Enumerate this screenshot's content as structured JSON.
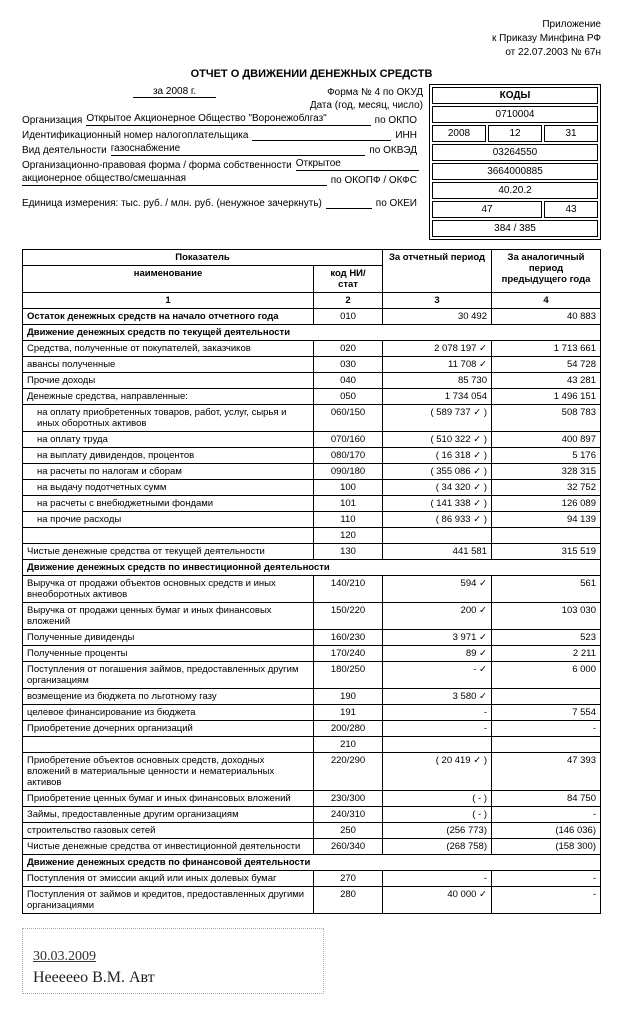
{
  "header": {
    "appendix": "Приложение",
    "order": "к Приказу Минфина РФ",
    "order_date": "от 22.07.2003 № 67н"
  },
  "title": "ОТЧЕТ О ДВИЖЕНИИ ДЕНЕЖНЫХ СРЕДСТВ",
  "period": "за 2008 г.",
  "codes": {
    "header": "КОДЫ",
    "okud_label": "Форма № 4 по ОКУД",
    "okud": "0710004",
    "date_label": "Дата (год, месяц, число)",
    "date_y": "2008",
    "date_m": "12",
    "date_d": "31",
    "okpo_label": "по ОКПО",
    "okpo": "03264550",
    "inn_label": "ИНН",
    "inn": "3664000885",
    "okved_label": "по ОКВЭД",
    "okved": "40.20.2",
    "okopf_label": "по ОКОПФ / ОКФС",
    "okopf": "47",
    "okfs": "43",
    "okei_label": "по ОКЕИ",
    "okei": "384 / 385"
  },
  "meta": {
    "org_label": "Организация",
    "org": "Открытое Акционерное Общество \"Воронежоблгаз\"",
    "inn_row": "Идентификационный номер налогоплательщика",
    "activity_label": "Вид деятельности",
    "activity": "газоснабжение",
    "form_label": "Организационно-правовая форма / форма собственности",
    "form": "Открытое",
    "form2": "акционерное общество/смешанная",
    "unit_label": "Единица измерения: тыс. руб. / млн. руб. (ненужное зачеркнуть)"
  },
  "columns": {
    "name_header": "Показатель",
    "name": "наименование",
    "code": "код НИ/\nстат",
    "period_current": "За отчетный период",
    "period_prev": "За аналогичный период предыдущего года",
    "n1": "1",
    "n2": "2",
    "n3": "3",
    "n4": "4"
  },
  "rows": [
    {
      "name": "Остаток денежных средств на начало отчетного года",
      "code": "010",
      "c": "30 492",
      "p": "40 883",
      "bold": true
    },
    {
      "name": "Движение денежных средств по текущей деятельности",
      "bold": true,
      "section": true
    },
    {
      "name": "Средства, полученные от покупателей, заказчиков",
      "code": "020",
      "c": "2 078 197 ✓",
      "p": "1 713 661"
    },
    {
      "name": "авансы полученные",
      "code": "030",
      "c": "11 708 ✓",
      "p": "54 728"
    },
    {
      "name": "Прочие доходы",
      "code": "040",
      "c": "85 730",
      "p": "43 281"
    },
    {
      "name": "Денежные средства, направленные:",
      "code": "050",
      "c": "1 734 054",
      "p": "1 496 151"
    },
    {
      "name": "на оплату приобретенных товаров, работ, услуг, сырья и иных оборотных активов",
      "code": "060/150",
      "c": "( 589 737 ✓ )",
      "p": "508 783",
      "indent": true
    },
    {
      "name": "на оплату труда",
      "code": "070/160",
      "c": "( 510 322 ✓ )",
      "p": "400 897",
      "indent": true
    },
    {
      "name": "на выплату дивидендов, процентов",
      "code": "080/170",
      "c": "( 16 318 ✓ )",
      "p": "5 176",
      "indent": true
    },
    {
      "name": "на расчеты по налогам и сборам",
      "code": "090/180",
      "c": "( 355 086 ✓ )",
      "p": "328 315",
      "indent": true
    },
    {
      "name": "на выдачу подотчетных сумм",
      "code": "100",
      "c": "( 34 320 ✓ )",
      "p": "32 752",
      "indent": true
    },
    {
      "name": "на расчеты с внебюджетными фондами",
      "code": "101",
      "c": "( 141 338 ✓ )",
      "p": "126 089",
      "indent": true
    },
    {
      "name": "на прочие расходы",
      "code": "110",
      "c": "( 86 933 ✓ )",
      "p": "94 139",
      "indent": true
    },
    {
      "name": "",
      "code": "120",
      "c": "",
      "p": ""
    },
    {
      "name": "Чистые денежные средства от текущей деятельности",
      "code": "130",
      "c": "441 581",
      "p": "315 519"
    },
    {
      "name": "Движение денежных средств по инвестиционной деятельности",
      "bold": true,
      "section": true
    },
    {
      "name": "Выручка от продажи объектов основных средств и иных внеоборотных активов",
      "code": "140/210",
      "c": "594 ✓",
      "p": "561"
    },
    {
      "name": "Выручка от продажи ценных бумаг и иных финансовых вложений",
      "code": "150/220",
      "c": "200 ✓",
      "p": "103 030"
    },
    {
      "name": "Полученные дивиденды",
      "code": "160/230",
      "c": "3 971 ✓",
      "p": "523"
    },
    {
      "name": "Полученные проценты",
      "code": "170/240",
      "c": "89 ✓",
      "p": "2 211"
    },
    {
      "name": "Поступления от погашения займов, предоставленных другим организациям",
      "code": "180/250",
      "c": "- ✓",
      "p": "6 000"
    },
    {
      "name": "возмещение из бюджета по льготному газу",
      "code": "190",
      "c": "3 580 ✓",
      "p": ""
    },
    {
      "name": "целевое финансирование из бюджета",
      "code": "191",
      "c": "-",
      "p": "7 554"
    },
    {
      "name": "Приобретение дочерних организаций",
      "code": "200/280",
      "c": "-",
      "p": "-"
    },
    {
      "name": "",
      "code": "210",
      "c": "",
      "p": ""
    },
    {
      "name": "Приобретение объектов основных средств, доходных вложений в материальные ценности и нематериальных активов",
      "code": "220/290",
      "c": "( 20 419 ✓ )",
      "p": "47 393"
    },
    {
      "name": "Приобретение ценных бумаг и иных финансовых вложений",
      "code": "230/300",
      "c": "( - )",
      "p": "84 750"
    },
    {
      "name": "Займы, предоставленные другим организациям",
      "code": "240/310",
      "c": "( - )",
      "p": "-"
    },
    {
      "name": "строительство газовых сетей",
      "code": "250",
      "c": "(256 773)",
      "p": "(146 036)"
    },
    {
      "name": "Чистые денежные средства от инвестиционной деятельности",
      "code": "260/340",
      "c": "(268 758)",
      "p": "(158 300)"
    },
    {
      "name": "Движение денежных средств по финансовой деятельности",
      "bold": true,
      "section": true
    },
    {
      "name": "Поступления от эмиссии акций или иных долевых бумаг",
      "code": "270",
      "c": "-",
      "p": "-"
    },
    {
      "name": "Поступления от займов и кредитов, предоставленных другими организациями",
      "code": "280",
      "c": "40 000 ✓",
      "p": "-"
    }
  ],
  "signature": {
    "stamp_text": "",
    "date": "30.03.2009",
    "signs": "Нееееео В.М.   Aвт"
  }
}
